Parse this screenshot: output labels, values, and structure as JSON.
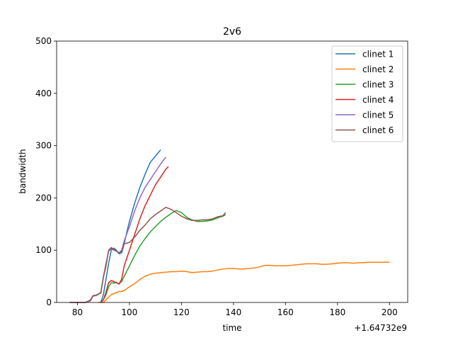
{
  "chart_data": {
    "type": "line",
    "title": "2v6",
    "xlabel": "time",
    "ylabel": "bandwidth",
    "x_offset_label": "+1.64732e9",
    "xlim": [
      72,
      207
    ],
    "ylim": [
      0,
      500
    ],
    "xticks": [
      80,
      100,
      120,
      140,
      160,
      180,
      200
    ],
    "yticks": [
      0,
      100,
      200,
      300,
      400,
      500
    ],
    "grid": false,
    "legend_position": "top-right",
    "series": [
      {
        "name": "clinet 1",
        "color": "#1f77b4",
        "x": [
          89,
          90,
          91,
          92,
          93,
          94,
          95,
          96,
          97,
          98,
          99,
          100,
          102,
          104,
          106,
          108,
          110,
          112
        ],
        "y": [
          0,
          15,
          45,
          75,
          100,
          104,
          100,
          93,
          95,
          112,
          135,
          155,
          190,
          220,
          245,
          268,
          280,
          292
        ]
      },
      {
        "name": "clinet 2",
        "color": "#ff7f0e",
        "x": [
          88,
          90,
          91,
          92,
          93,
          94,
          95,
          96,
          97,
          98,
          100,
          102,
          104,
          106,
          108,
          110,
          112,
          114,
          116,
          118,
          120,
          122,
          124,
          126,
          128,
          130,
          132,
          134,
          136,
          138,
          140,
          142,
          144,
          146,
          148,
          150,
          152,
          154,
          156,
          158,
          160,
          162,
          164,
          166,
          168,
          170,
          172,
          174,
          176,
          178,
          180,
          182,
          184,
          186,
          188,
          190,
          192,
          194,
          196,
          198,
          200
        ],
        "y": [
          0,
          0,
          5,
          10,
          15,
          17,
          19,
          21,
          21,
          23,
          30,
          36,
          44,
          50,
          54,
          56,
          57,
          58,
          59,
          59,
          60,
          59,
          57,
          58,
          59,
          59,
          60,
          62,
          64,
          65,
          65,
          64,
          64,
          65,
          66,
          68,
          71,
          71,
          70,
          70,
          70,
          71,
          72,
          73,
          74,
          74,
          74,
          73,
          73,
          74,
          75,
          76,
          76,
          75,
          76,
          76,
          77,
          77,
          77,
          77,
          77
        ]
      },
      {
        "name": "clinet 3",
        "color": "#2ca02c",
        "x": [
          89,
          90,
          91,
          92,
          93,
          94,
          95,
          96,
          97,
          98,
          100,
          102,
          104,
          106,
          108,
          110,
          112,
          114,
          116,
          118,
          120,
          122,
          124,
          126,
          128,
          130,
          132,
          134,
          136,
          137
        ],
        "y": [
          0,
          5,
          15,
          30,
          38,
          37,
          38,
          36,
          40,
          50,
          70,
          90,
          108,
          122,
          135,
          145,
          155,
          163,
          170,
          176,
          172,
          163,
          158,
          155,
          155,
          156,
          158,
          162,
          165,
          168
        ]
      },
      {
        "name": "clinet 4",
        "color": "#d62728",
        "x": [
          89,
          90,
          91,
          92,
          93,
          94,
          95,
          96,
          97,
          98,
          100,
          102,
          104,
          106,
          108,
          110,
          112,
          114,
          115
        ],
        "y": [
          0,
          5,
          20,
          38,
          42,
          40,
          38,
          35,
          45,
          70,
          100,
          130,
          160,
          185,
          205,
          225,
          240,
          255,
          260
        ]
      },
      {
        "name": "clinet 5",
        "color": "#9467bd",
        "x": [
          77,
          80,
          83,
          85,
          86,
          87,
          88,
          89,
          90,
          91,
          92,
          93,
          94,
          95,
          96,
          97,
          98,
          100,
          102,
          104,
          106,
          108,
          110,
          112,
          114
        ],
        "y": [
          0,
          0,
          0,
          3,
          12,
          13,
          15,
          20,
          50,
          75,
          98,
          103,
          100,
          98,
          95,
          100,
          118,
          145,
          175,
          200,
          220,
          235,
          250,
          265,
          278
        ]
      },
      {
        "name": "clinet 6",
        "color": "#8c564b",
        "x": [
          77,
          80,
          83,
          84,
          85,
          86,
          87,
          88,
          89,
          90,
          91,
          92,
          93,
          94,
          95,
          96,
          97,
          98,
          100,
          102,
          104,
          106,
          108,
          110,
          112,
          114,
          116,
          118,
          120,
          122,
          124,
          126,
          128,
          130,
          132,
          134,
          136,
          137
        ],
        "y": [
          0,
          0,
          0,
          2,
          5,
          13,
          14,
          16,
          18,
          48,
          70,
          100,
          105,
          101,
          99,
          95,
          98,
          112,
          115,
          125,
          138,
          148,
          160,
          168,
          175,
          182,
          178,
          172,
          165,
          160,
          157,
          157,
          158,
          158,
          160,
          164,
          166,
          172
        ]
      }
    ]
  }
}
